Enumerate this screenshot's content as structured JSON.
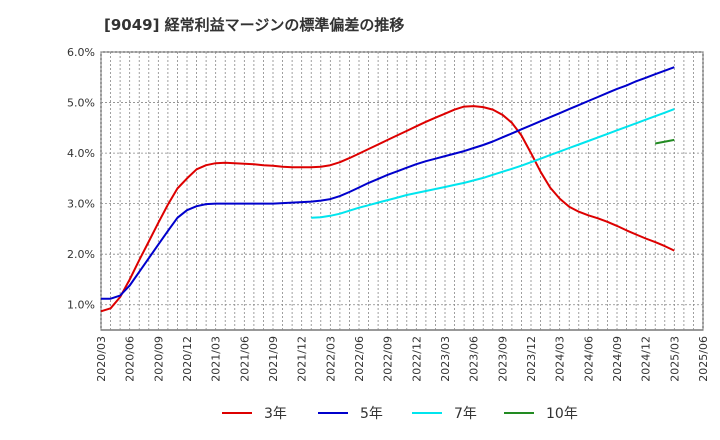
{
  "chart_data": {
    "type": "line",
    "title": "[9049]  経常利益マージンの標準偏差の推移",
    "xlabel": "",
    "ylabel": "",
    "ylim": [
      0.5,
      6.0
    ],
    "yticks": [
      "1.0%",
      "2.0%",
      "3.0%",
      "4.0%",
      "5.0%",
      "6.0%"
    ],
    "ytick_values": [
      1.0,
      2.0,
      3.0,
      4.0,
      5.0,
      6.0
    ],
    "xticks": [
      "2020/03",
      "2020/06",
      "2020/09",
      "2020/12",
      "2021/03",
      "2021/06",
      "2021/09",
      "2021/12",
      "2022/03",
      "2022/06",
      "2022/09",
      "2022/12",
      "2023/03",
      "2023/06",
      "2023/09",
      "2023/12",
      "2024/03",
      "2024/06",
      "2024/09",
      "2024/12",
      "2025/03",
      "2025/06"
    ],
    "grid": true,
    "legend_position": "bottom",
    "series": [
      {
        "name": "3年",
        "color": "#dd0000",
        "points": [
          [
            "2020/03",
            0.87
          ],
          [
            "2020/04",
            0.93
          ],
          [
            "2020/05",
            1.15
          ],
          [
            "2020/06",
            1.5
          ],
          [
            "2020/07",
            1.88
          ],
          [
            "2020/08",
            2.25
          ],
          [
            "2020/09",
            2.62
          ],
          [
            "2020/10",
            2.98
          ],
          [
            "2020/11",
            3.3
          ],
          [
            "2020/12",
            3.5
          ],
          [
            "2021/01",
            3.68
          ],
          [
            "2021/02",
            3.76
          ],
          [
            "2021/03",
            3.8
          ],
          [
            "2021/04",
            3.81
          ],
          [
            "2021/05",
            3.8
          ],
          [
            "2021/06",
            3.79
          ],
          [
            "2021/07",
            3.78
          ],
          [
            "2021/08",
            3.76
          ],
          [
            "2021/09",
            3.75
          ],
          [
            "2021/10",
            3.73
          ],
          [
            "2021/11",
            3.72
          ],
          [
            "2021/12",
            3.72
          ],
          [
            "2022/01",
            3.72
          ],
          [
            "2022/02",
            3.73
          ],
          [
            "2022/03",
            3.76
          ],
          [
            "2022/04",
            3.82
          ],
          [
            "2022/05",
            3.9
          ],
          [
            "2022/06",
            3.99
          ],
          [
            "2022/07",
            4.08
          ],
          [
            "2022/08",
            4.17
          ],
          [
            "2022/09",
            4.26
          ],
          [
            "2022/10",
            4.35
          ],
          [
            "2022/11",
            4.44
          ],
          [
            "2022/12",
            4.53
          ],
          [
            "2023/01",
            4.62
          ],
          [
            "2023/02",
            4.7
          ],
          [
            "2023/03",
            4.78
          ],
          [
            "2023/04",
            4.86
          ],
          [
            "2023/05",
            4.92
          ],
          [
            "2023/06",
            4.93
          ],
          [
            "2023/07",
            4.91
          ],
          [
            "2023/08",
            4.86
          ],
          [
            "2023/09",
            4.76
          ],
          [
            "2023/10",
            4.6
          ],
          [
            "2023/11",
            4.35
          ],
          [
            "2023/12",
            4.0
          ],
          [
            "2024/01",
            3.63
          ],
          [
            "2024/02",
            3.32
          ],
          [
            "2024/03",
            3.1
          ],
          [
            "2024/04",
            2.94
          ],
          [
            "2024/05",
            2.84
          ],
          [
            "2024/06",
            2.77
          ],
          [
            "2024/07",
            2.71
          ],
          [
            "2024/08",
            2.64
          ],
          [
            "2024/09",
            2.56
          ],
          [
            "2024/10",
            2.47
          ],
          [
            "2024/11",
            2.39
          ],
          [
            "2024/12",
            2.31
          ],
          [
            "2025/01",
            2.24
          ],
          [
            "2025/02",
            2.16
          ],
          [
            "2025/03",
            2.07
          ]
        ]
      },
      {
        "name": "5年",
        "color": "#0000cc",
        "points": [
          [
            "2020/03",
            1.12
          ],
          [
            "2020/04",
            1.12
          ],
          [
            "2020/05",
            1.18
          ],
          [
            "2020/06",
            1.38
          ],
          [
            "2020/07",
            1.65
          ],
          [
            "2020/08",
            1.92
          ],
          [
            "2020/09",
            2.19
          ],
          [
            "2020/10",
            2.46
          ],
          [
            "2020/11",
            2.72
          ],
          [
            "2020/12",
            2.87
          ],
          [
            "2021/01",
            2.95
          ],
          [
            "2021/02",
            2.99
          ],
          [
            "2021/03",
            3.0
          ],
          [
            "2021/04",
            3.0
          ],
          [
            "2021/05",
            3.0
          ],
          [
            "2021/06",
            3.0
          ],
          [
            "2021/07",
            3.0
          ],
          [
            "2021/08",
            3.0
          ],
          [
            "2021/09",
            3.0
          ],
          [
            "2021/10",
            3.01
          ],
          [
            "2021/11",
            3.02
          ],
          [
            "2021/12",
            3.03
          ],
          [
            "2022/01",
            3.04
          ],
          [
            "2022/02",
            3.06
          ],
          [
            "2022/03",
            3.09
          ],
          [
            "2022/04",
            3.15
          ],
          [
            "2022/05",
            3.23
          ],
          [
            "2022/06",
            3.32
          ],
          [
            "2022/07",
            3.41
          ],
          [
            "2022/08",
            3.49
          ],
          [
            "2022/09",
            3.57
          ],
          [
            "2022/10",
            3.64
          ],
          [
            "2022/11",
            3.71
          ],
          [
            "2022/12",
            3.78
          ],
          [
            "2023/01",
            3.84
          ],
          [
            "2023/02",
            3.89
          ],
          [
            "2023/03",
            3.94
          ],
          [
            "2023/04",
            3.99
          ],
          [
            "2023/05",
            4.04
          ],
          [
            "2023/06",
            4.1
          ],
          [
            "2023/07",
            4.16
          ],
          [
            "2023/08",
            4.23
          ],
          [
            "2023/09",
            4.31
          ],
          [
            "2023/10",
            4.39
          ],
          [
            "2023/11",
            4.47
          ],
          [
            "2023/12",
            4.55
          ],
          [
            "2024/01",
            4.63
          ],
          [
            "2024/02",
            4.71
          ],
          [
            "2024/03",
            4.79
          ],
          [
            "2024/04",
            4.87
          ],
          [
            "2024/05",
            4.95
          ],
          [
            "2024/06",
            5.03
          ],
          [
            "2024/07",
            5.11
          ],
          [
            "2024/08",
            5.19
          ],
          [
            "2024/09",
            5.27
          ],
          [
            "2024/10",
            5.34
          ],
          [
            "2024/11",
            5.42
          ],
          [
            "2024/12",
            5.49
          ],
          [
            "2025/01",
            5.56
          ],
          [
            "2025/02",
            5.63
          ],
          [
            "2025/03",
            5.7
          ]
        ]
      },
      {
        "name": "7年",
        "color": "#00e5ee",
        "points": [
          [
            "2022/01",
            2.72
          ],
          [
            "2022/02",
            2.73
          ],
          [
            "2022/03",
            2.76
          ],
          [
            "2022/04",
            2.8
          ],
          [
            "2022/05",
            2.86
          ],
          [
            "2022/06",
            2.92
          ],
          [
            "2022/07",
            2.97
          ],
          [
            "2022/08",
            3.02
          ],
          [
            "2022/09",
            3.07
          ],
          [
            "2022/10",
            3.12
          ],
          [
            "2022/11",
            3.17
          ],
          [
            "2022/12",
            3.21
          ],
          [
            "2023/01",
            3.25
          ],
          [
            "2023/02",
            3.29
          ],
          [
            "2023/03",
            3.33
          ],
          [
            "2023/04",
            3.37
          ],
          [
            "2023/05",
            3.41
          ],
          [
            "2023/06",
            3.46
          ],
          [
            "2023/07",
            3.51
          ],
          [
            "2023/08",
            3.57
          ],
          [
            "2023/09",
            3.63
          ],
          [
            "2023/10",
            3.69
          ],
          [
            "2023/11",
            3.75
          ],
          [
            "2023/12",
            3.82
          ],
          [
            "2024/01",
            3.89
          ],
          [
            "2024/02",
            3.96
          ],
          [
            "2024/03",
            4.03
          ],
          [
            "2024/04",
            4.1
          ],
          [
            "2024/05",
            4.17
          ],
          [
            "2024/06",
            4.24
          ],
          [
            "2024/07",
            4.31
          ],
          [
            "2024/08",
            4.38
          ],
          [
            "2024/09",
            4.45
          ],
          [
            "2024/10",
            4.52
          ],
          [
            "2024/11",
            4.59
          ],
          [
            "2024/12",
            4.66
          ],
          [
            "2025/01",
            4.73
          ],
          [
            "2025/02",
            4.8
          ],
          [
            "2025/03",
            4.87
          ]
        ]
      },
      {
        "name": "10年",
        "color": "#228b22",
        "points": [
          [
            "2025/01",
            4.19
          ],
          [
            "2025/03",
            4.26
          ]
        ]
      }
    ]
  }
}
